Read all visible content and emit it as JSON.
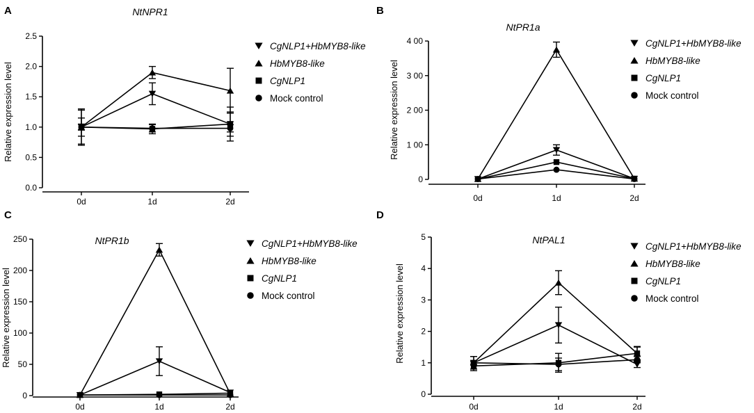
{
  "chart_data": [
    {
      "panel": "A",
      "type": "line",
      "title": "NtNPR1",
      "xlabel": "",
      "ylabel": "Relative expression level",
      "categories": [
        "0d",
        "1d",
        "2d"
      ],
      "ylim": [
        0,
        2.5
      ],
      "yticks": [
        "0.0",
        "0.5",
        "1.0",
        "1.5",
        "2.0",
        "2.5"
      ],
      "ytick_values": [
        0,
        0.5,
        1.0,
        1.5,
        2.0,
        2.5
      ],
      "series": [
        {
          "name": "CgNLP1+HbMYB8-like",
          "marker": "triangle-down",
          "values": [
            1.0,
            1.55,
            1.05
          ],
          "errors": [
            0.28,
            0.18,
            0.2
          ]
        },
        {
          "name": "HbMYB8-like",
          "marker": "triangle-up",
          "values": [
            1.0,
            1.9,
            1.6
          ],
          "errors": [
            0.3,
            0.1,
            0.37
          ]
        },
        {
          "name": "CgNLP1",
          "marker": "square",
          "values": [
            1.0,
            0.97,
            1.05
          ],
          "errors": [
            0.15,
            0.08,
            0.28
          ]
        },
        {
          "name": "Mock control",
          "marker": "circle",
          "values": [
            1.0,
            0.98,
            0.98
          ],
          "errors": [
            0.05,
            0.06,
            0.06
          ]
        }
      ]
    },
    {
      "panel": "B",
      "type": "line",
      "title": "NtPR1a",
      "xlabel": "",
      "ylabel": "Relative expression level",
      "categories": [
        "0d",
        "1d",
        "2d"
      ],
      "ylim": [
        0,
        400
      ],
      "yticks": [
        "0",
        "1 00",
        "2 00",
        "3 00",
        "4 00"
      ],
      "ytick_values": [
        0,
        100,
        200,
        300,
        400
      ],
      "series": [
        {
          "name": "CgNLP1+HbMYB8-like",
          "marker": "triangle-down",
          "values": [
            1,
            85,
            2
          ],
          "errors": [
            0,
            15,
            0
          ]
        },
        {
          "name": "HbMYB8-like",
          "marker": "triangle-up",
          "values": [
            1,
            375,
            2
          ],
          "errors": [
            0,
            22,
            0
          ]
        },
        {
          "name": "CgNLP1",
          "marker": "square",
          "values": [
            1,
            50,
            2
          ],
          "errors": [
            0,
            0,
            0
          ]
        },
        {
          "name": "Mock control",
          "marker": "circle",
          "values": [
            1,
            28,
            1
          ],
          "errors": [
            0,
            0,
            0
          ]
        }
      ]
    },
    {
      "panel": "C",
      "type": "line",
      "title": "NtPR1b",
      "xlabel": "",
      "ylabel": "Relative expression level",
      "categories": [
        "0d",
        "1d",
        "2d"
      ],
      "ylim": [
        0,
        250
      ],
      "yticks": [
        "0",
        "50",
        "100",
        "150",
        "200",
        "250"
      ],
      "ytick_values": [
        0,
        50,
        100,
        150,
        200,
        250
      ],
      "series": [
        {
          "name": "CgNLP1+HbMYB8-like",
          "marker": "triangle-down",
          "values": [
            1,
            55,
            5
          ],
          "errors": [
            0,
            23,
            0
          ]
        },
        {
          "name": "HbMYB8-like",
          "marker": "triangle-up",
          "values": [
            1,
            233,
            3
          ],
          "errors": [
            0,
            10,
            0
          ]
        },
        {
          "name": "CgNLP1",
          "marker": "square",
          "values": [
            1,
            2,
            4
          ],
          "errors": [
            0,
            0,
            0
          ]
        },
        {
          "name": "Mock control",
          "marker": "circle",
          "values": [
            1,
            1,
            1
          ],
          "errors": [
            0,
            0,
            0
          ]
        }
      ]
    },
    {
      "panel": "D",
      "type": "line",
      "title": "NtPAL1",
      "xlabel": "",
      "ylabel": "Relative expression level",
      "categories": [
        "0d",
        "1d",
        "2d"
      ],
      "ylim": [
        0,
        5
      ],
      "yticks": [
        "0",
        "1",
        "2",
        "3",
        "4",
        "5"
      ],
      "ytick_values": [
        0,
        1,
        2,
        3,
        4,
        5
      ],
      "series": [
        {
          "name": "CgNLP1+HbMYB8-like",
          "marker": "triangle-down",
          "values": [
            1.0,
            2.2,
            0.95
          ],
          "errors": [
            0.2,
            0.57,
            0.1
          ]
        },
        {
          "name": "HbMYB8-like",
          "marker": "triangle-up",
          "values": [
            1.0,
            3.55,
            1.3
          ],
          "errors": [
            0.2,
            0.38,
            0.22
          ]
        },
        {
          "name": "CgNLP1",
          "marker": "square",
          "values": [
            0.9,
            1.0,
            1.3
          ],
          "errors": [
            0.15,
            0.3,
            0.2
          ]
        },
        {
          "name": "Mock control",
          "marker": "circle",
          "values": [
            1.0,
            0.95,
            1.1
          ],
          "errors": [
            0.05,
            0.2,
            0.1
          ]
        }
      ]
    }
  ]
}
